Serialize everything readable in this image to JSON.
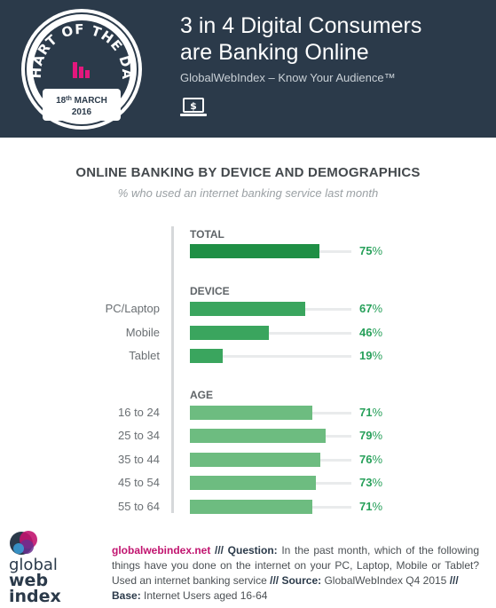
{
  "header": {
    "badge_text": "CHART OF THE DAY",
    "badge_date_day": "18",
    "badge_date_suffix": "th",
    "badge_date_month": "MARCH",
    "badge_date_year": "2016",
    "title_line1": "3 in 4 Digital Consumers",
    "title_line2": "are Banking Online",
    "subtitle": "GlobalWebIndex – Know Your Audience™",
    "icon": "laptop-dollar-icon"
  },
  "colors": {
    "header_bg": "#2b3a4a",
    "total_bar": "#1f8f45",
    "device_bar": "#3aa55e",
    "age_bar": "#6dbc80",
    "value_text": "#27a05a",
    "accent_pink": "#c1146f"
  },
  "chart_data": {
    "type": "bar",
    "orientation": "horizontal",
    "title": "ONLINE BANKING BY DEVICE AND DEMOGRAPHICS",
    "subtitle": "% who used an internet banking service last month",
    "unit": "%",
    "xlim": [
      0,
      100
    ],
    "groups": [
      {
        "name": "TOTAL",
        "categories": [
          ""
        ],
        "values": [
          75
        ]
      },
      {
        "name": "DEVICE",
        "categories": [
          "PC/Laptop",
          "Mobile",
          "Tablet"
        ],
        "values": [
          67,
          46,
          19
        ]
      },
      {
        "name": "AGE",
        "categories": [
          "16 to 24",
          "25 to 34",
          "35 to 44",
          "45 to 54",
          "55 to 64"
        ],
        "values": [
          71,
          79,
          76,
          73,
          71
        ]
      }
    ]
  },
  "footer": {
    "logo_line1": "global",
    "logo_line2": "web",
    "logo_line3": "index",
    "url": "globalwebindex.net",
    "sep1": " /// ",
    "question_label": "Question:",
    "question_text": " In the past month, which of the following things have you done on the internet on your PC, Laptop, Mobile or Tablet? Used an internet banking service",
    "sep2": " /// ",
    "source_label": "Source:",
    "source_text": " GlobalWebIndex Q4 2015",
    "sep3": " /// ",
    "base_label": "Base:",
    "base_text": " Internet Users aged 16-64"
  }
}
